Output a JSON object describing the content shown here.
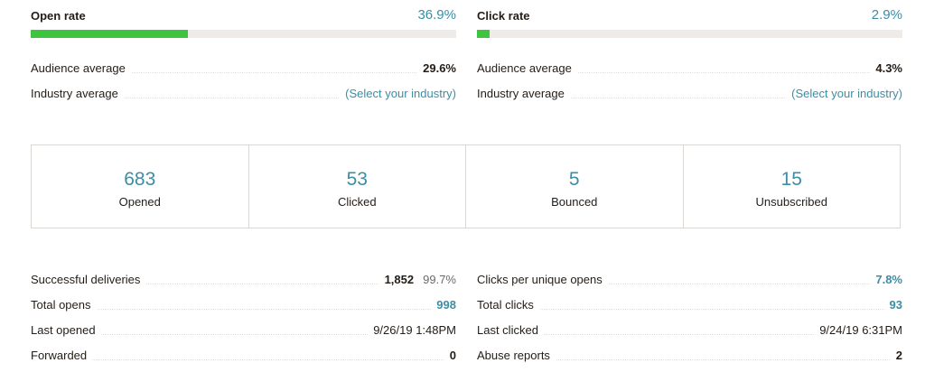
{
  "open_rate": {
    "title": "Open rate",
    "value": "36.9%",
    "fill_percent": 36.9,
    "audience_label": "Audience average",
    "audience_value": "29.6%",
    "industry_label": "Industry average",
    "industry_value": "(Select your industry)"
  },
  "click_rate": {
    "title": "Click rate",
    "value": "2.9%",
    "fill_percent": 2.9,
    "audience_label": "Audience average",
    "audience_value": "4.3%",
    "industry_label": "Industry average",
    "industry_value": "(Select your industry)"
  },
  "stats": [
    {
      "number": "683",
      "label": "Opened"
    },
    {
      "number": "53",
      "label": "Clicked"
    },
    {
      "number": "5",
      "label": "Bounced"
    },
    {
      "number": "15",
      "label": "Unsubscribed"
    }
  ],
  "details_left": {
    "successful_deliveries": {
      "label": "Successful deliveries",
      "value": "1,852",
      "percent": "99.7%"
    },
    "total_opens": {
      "label": "Total opens",
      "value": "998"
    },
    "last_opened": {
      "label": "Last opened",
      "value": "9/26/19 1:48PM"
    },
    "forwarded": {
      "label": "Forwarded",
      "value": "0"
    }
  },
  "details_right": {
    "clicks_per_unique_opens": {
      "label": "Clicks per unique opens",
      "value": "7.8%"
    },
    "total_clicks": {
      "label": "Total clicks",
      "value": "93"
    },
    "last_clicked": {
      "label": "Last clicked",
      "value": "9/24/19 6:31PM"
    },
    "abuse_reports": {
      "label": "Abuse reports",
      "value": "2"
    }
  },
  "colors": {
    "accent": "#3b8ea5",
    "bar_fill": "#3ec43e",
    "bar_track": "#eeebe9"
  }
}
